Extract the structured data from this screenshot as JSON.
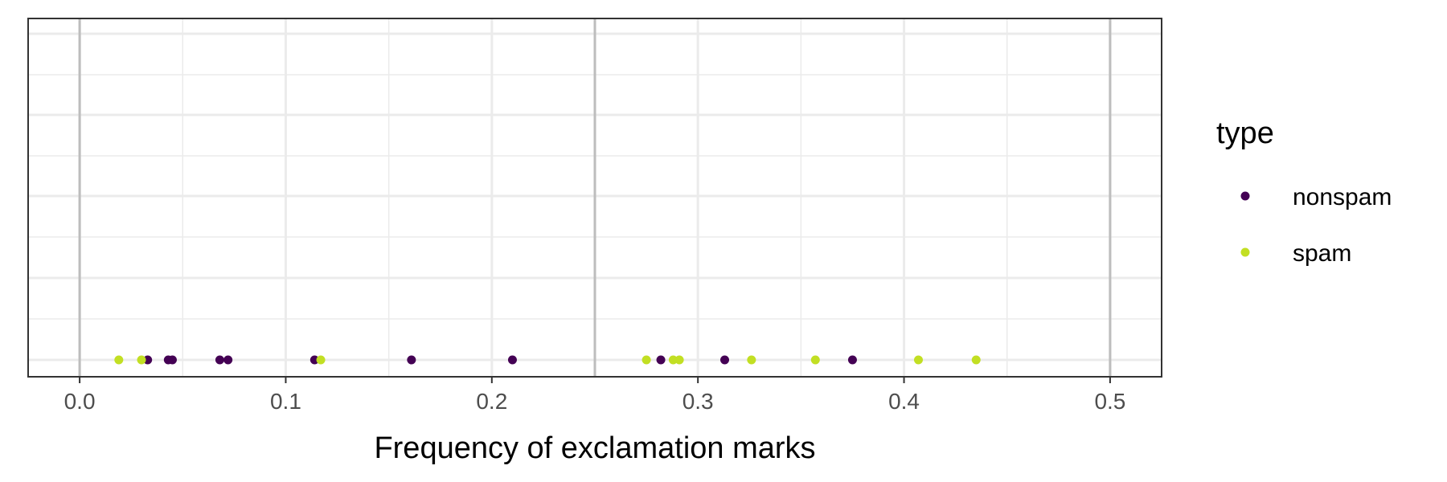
{
  "chart_data": {
    "type": "scatter",
    "xlabel": "Frequency of exclamation marks",
    "ylabel": "",
    "xlim": [
      -0.025,
      0.525
    ],
    "x_ticks": [
      "0.0",
      "0.1",
      "0.2",
      "0.3",
      "0.4",
      "0.5"
    ],
    "x_tick_values": [
      0.0,
      0.1,
      0.2,
      0.3,
      0.4,
      0.5
    ],
    "highlight_x_values": [
      0.0,
      0.25,
      0.5
    ],
    "grid": true,
    "legend": {
      "title": "type",
      "position": "right"
    },
    "series": [
      {
        "name": "nonspam",
        "color": "#440154",
        "x": [
          0.033,
          0.043,
          0.045,
          0.068,
          0.072,
          0.114,
          0.161,
          0.21,
          0.282,
          0.313,
          0.375
        ]
      },
      {
        "name": "spam",
        "color": "#c2df23",
        "x": [
          0.019,
          0.03,
          0.117,
          0.275,
          0.288,
          0.291,
          0.326,
          0.357,
          0.407,
          0.435
        ]
      }
    ]
  }
}
